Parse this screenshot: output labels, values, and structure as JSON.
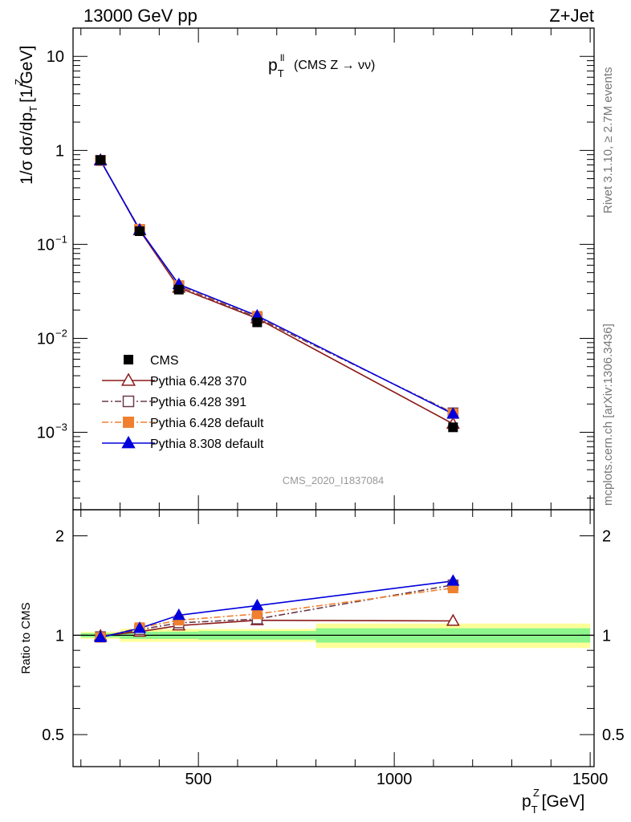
{
  "header": {
    "left": "13000 GeV pp",
    "right": "Z+Jet"
  },
  "side_labels": {
    "rivet": "Rivet 3.1.10, ≥ 2.7M events",
    "mcplots": "mcplots.cern.ch [arXiv:1306.3436]"
  },
  "watermark": "CMS_2020_I1837084",
  "chart_data": [
    {
      "type": "scatter",
      "panel": "main",
      "title_main": "p",
      "title_sup": "ll",
      "title_sub": "T",
      "title_rest": "(CMS Z → νν)",
      "ylabel": "1/σ dσ/dp",
      "ylabel_sup": "Z",
      "ylabel_sub": "T",
      "ylabel_unit": "[1/GeV]",
      "yscale": "log",
      "ylim": [
        0.00015,
        20
      ],
      "xlim": [
        180,
        1510
      ],
      "y_ticks": [
        {
          "value": 10,
          "label": "10"
        },
        {
          "value": 1,
          "label": "1"
        },
        {
          "value": 0.1,
          "label": "10",
          "exp": "−1"
        },
        {
          "value": 0.01,
          "label": "10",
          "exp": "−2"
        },
        {
          "value": 0.001,
          "label": "10",
          "exp": "−3"
        }
      ],
      "x": [
        250,
        350,
        450,
        650,
        1150
      ],
      "series": [
        {
          "name": "CMS",
          "color": "#000000",
          "marker": "square",
          "line": "none",
          "values": [
            0.79,
            0.138,
            0.033,
            0.0148,
            0.00113
          ]
        },
        {
          "name": "Pythia 6.428 370",
          "color": "#8b1a1a",
          "marker": "triangle-open",
          "line": "solid",
          "values": [
            0.785,
            0.141,
            0.0345,
            0.0163,
            0.00123
          ]
        },
        {
          "name": "Pythia 6.428 391",
          "color": "#6b3a4a",
          "marker": "square-open",
          "line": "dashdot",
          "values": [
            0.78,
            0.143,
            0.036,
            0.0166,
            0.00161
          ]
        },
        {
          "name": "Pythia 6.428 default",
          "color": "#f08030",
          "marker": "square",
          "line": "dashdot",
          "values": [
            0.78,
            0.145,
            0.0365,
            0.0172,
            0.00158
          ]
        },
        {
          "name": "Pythia 8.308 default",
          "color": "#0000dd",
          "marker": "triangle",
          "line": "solid",
          "values": [
            0.78,
            0.143,
            0.0375,
            0.0174,
            0.00157
          ]
        }
      ],
      "legend_placement": "lower-left"
    },
    {
      "type": "scatter",
      "panel": "ratio",
      "ylabel": "Ratio to CMS",
      "xlabel": "p",
      "xlabel_sup": "Z",
      "xlabel_sub": "T",
      "xlabel_unit": "[GeV]",
      "yscale": "log",
      "ylim": [
        0.4,
        2.4
      ],
      "xlim": [
        180,
        1510
      ],
      "y_ticks": [
        {
          "value": 2,
          "label": "2"
        },
        {
          "value": 1,
          "label": "1"
        },
        {
          "value": 0.5,
          "label": "0.5"
        }
      ],
      "x_ticks": [
        {
          "value": 500,
          "label": "500"
        },
        {
          "value": 1000,
          "label": "1000"
        },
        {
          "value": 1500,
          "label": "1500"
        }
      ],
      "bands": [
        {
          "x0": 200,
          "x1": 300,
          "stat": [
            0.985,
            1.015
          ],
          "total": [
            0.975,
            1.025
          ]
        },
        {
          "x0": 300,
          "x1": 400,
          "stat": [
            0.975,
            1.025
          ],
          "total": [
            0.955,
            1.045
          ]
        },
        {
          "x0": 400,
          "x1": 500,
          "stat": [
            0.975,
            1.025
          ],
          "total": [
            0.955,
            1.045
          ]
        },
        {
          "x0": 500,
          "x1": 800,
          "stat": [
            0.97,
            1.03
          ],
          "total": [
            0.955,
            1.045
          ]
        },
        {
          "x0": 800,
          "x1": 1500,
          "stat": [
            0.95,
            1.05
          ],
          "total": [
            0.915,
            1.085
          ]
        }
      ],
      "x": [
        250,
        350,
        450,
        650,
        1150
      ],
      "series": [
        {
          "name": "Pythia 6.428 370",
          "color": "#8b1a1a",
          "marker": "triangle-open",
          "line": "solid",
          "values": [
            0.995,
            1.025,
            1.07,
            1.11,
            1.105
          ]
        },
        {
          "name": "Pythia 6.428 391",
          "color": "#6b3a4a",
          "marker": "square-open",
          "line": "dashdot",
          "values": [
            0.99,
            1.04,
            1.09,
            1.12,
            1.42
          ]
        },
        {
          "name": "Pythia 6.428 default",
          "color": "#f08030",
          "marker": "square",
          "line": "dashdot",
          "values": [
            0.985,
            1.055,
            1.11,
            1.16,
            1.39
          ]
        },
        {
          "name": "Pythia 8.308 default",
          "color": "#0000dd",
          "marker": "triangle",
          "line": "solid",
          "values": [
            0.985,
            1.05,
            1.15,
            1.23,
            1.46
          ]
        }
      ]
    }
  ]
}
